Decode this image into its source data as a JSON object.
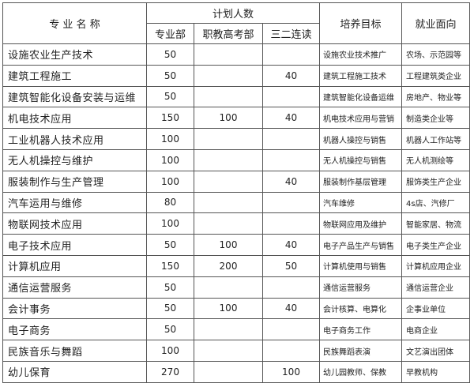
{
  "headers": {
    "major": "专 业 名 称",
    "plan": "计划人数",
    "dept": "专业部",
    "vocational": "职教高考部",
    "three_two": "三二连读",
    "goal": "培养目标",
    "employment": "就业面向"
  },
  "rows": [
    {
      "name": "设施农业生产技术",
      "dept": "50",
      "vocational": "",
      "three_two": "",
      "goal": "设施农业技术推广",
      "employment": "农场、示范园等"
    },
    {
      "name": "建筑工程施工",
      "dept": "50",
      "vocational": "",
      "three_two": "40",
      "goal": "建筑工程施工技术",
      "employment": "工程建筑类企业"
    },
    {
      "name": "建筑智能化设备安装与运维",
      "dept": "50",
      "vocational": "",
      "three_two": "",
      "goal": "建筑智能化设备运维",
      "employment": "房地产、物业等"
    },
    {
      "name": "机电技术应用",
      "dept": "150",
      "vocational": "100",
      "three_two": "40",
      "goal": "机电技术应用与营销",
      "employment": "制造类企业等"
    },
    {
      "name": "工业机器人技术应用",
      "dept": "100",
      "vocational": "",
      "three_two": "",
      "goal": "机器人操控与销售",
      "employment": "机器人工作站等"
    },
    {
      "name": "无人机操控与维护",
      "dept": "100",
      "vocational": "",
      "three_two": "",
      "goal": "无人机操控与销售",
      "employment": "无人机测绘等"
    },
    {
      "name": "服装制作与生产管理",
      "dept": "100",
      "vocational": "",
      "three_two": "40",
      "goal": "服装制作基层管理",
      "employment": "服饰类生产企业"
    },
    {
      "name": "汽车运用与维修",
      "dept": "80",
      "vocational": "",
      "three_two": "",
      "goal": "汽车维修",
      "employment": "4s店、汽修厂"
    },
    {
      "name": "物联网技术应用",
      "dept": "100",
      "vocational": "",
      "three_two": "",
      "goal": "物联网应用及维护",
      "employment": "智能家居、物流"
    },
    {
      "name": "电子技术应用",
      "dept": "50",
      "vocational": "100",
      "three_two": "40",
      "goal": "电子产品生产与销售",
      "employment": "电子类生产企业"
    },
    {
      "name": "计算机应用",
      "dept": "150",
      "vocational": "200",
      "three_two": "50",
      "goal": "计算机使用与销售",
      "employment": "计算机应用企业"
    },
    {
      "name": "通信运营服务",
      "dept": "50",
      "vocational": "",
      "three_two": "",
      "goal": "通信运营服务",
      "employment": "通信运营企业"
    },
    {
      "name": "会计事务",
      "dept": "50",
      "vocational": "100",
      "three_two": "40",
      "goal": "会计核算、电算化",
      "employment": "企事业单位"
    },
    {
      "name": "电子商务",
      "dept": "50",
      "vocational": "",
      "three_two": "",
      "goal": "电子商务工作",
      "employment": "电商企业"
    },
    {
      "name": "民族音乐与舞蹈",
      "dept": "100",
      "vocational": "",
      "three_two": "",
      "goal": "民族舞蹈表演",
      "employment": "文艺演出团体"
    },
    {
      "name": "幼儿保育",
      "dept": "270",
      "vocational": "",
      "three_two": "100",
      "goal": "幼儿园教师、保教",
      "employment": "早教机构"
    }
  ]
}
